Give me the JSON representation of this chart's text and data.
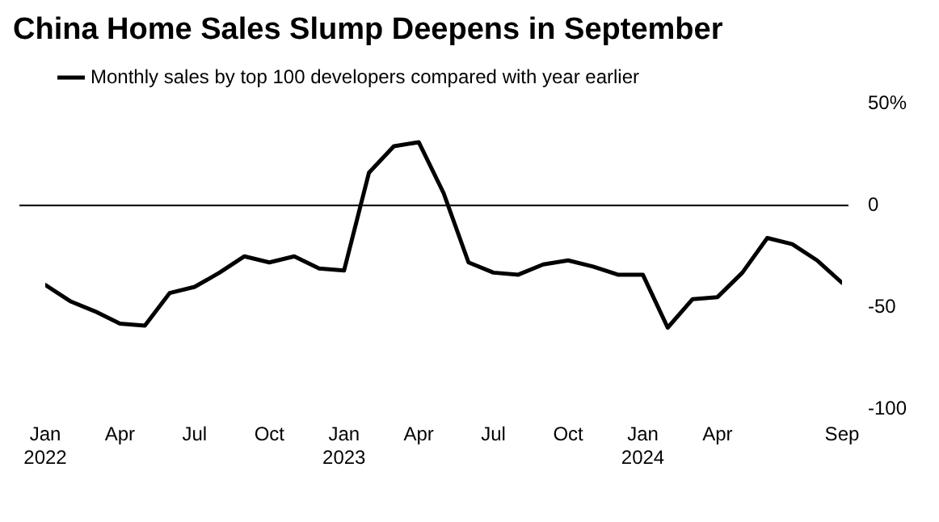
{
  "chart_data": {
    "type": "line",
    "title": "China Home Sales Slump Deepens in September",
    "x": [
      "2022-01",
      "2022-02",
      "2022-03",
      "2022-04",
      "2022-05",
      "2022-06",
      "2022-07",
      "2022-08",
      "2022-09",
      "2022-10",
      "2022-11",
      "2022-12",
      "2023-01",
      "2023-02",
      "2023-03",
      "2023-04",
      "2023-05",
      "2023-06",
      "2023-07",
      "2023-08",
      "2023-09",
      "2023-10",
      "2023-11",
      "2023-12",
      "2024-01",
      "2024-02",
      "2024-03",
      "2024-04",
      "2024-05",
      "2024-06",
      "2024-07",
      "2024-08",
      "2024-09"
    ],
    "series": [
      {
        "name": "Monthly sales by top 100 developers compared with year earlier",
        "color": "#000000",
        "values": [
          -39,
          -47,
          -52,
          -58,
          -59,
          -43,
          -40,
          -33,
          -25,
          -28,
          -25,
          -31,
          -32,
          16,
          29,
          31,
          6,
          -28,
          -33,
          -34,
          -29,
          -27,
          -30,
          -34,
          -34,
          -60,
          -46,
          -45,
          -33,
          -16,
          -19,
          -27,
          -38
        ]
      }
    ],
    "xticks": [
      {
        "value": "2022-01",
        "label": "Jan 2022"
      },
      {
        "value": "2022-04",
        "label": "Apr"
      },
      {
        "value": "2022-07",
        "label": "Jul"
      },
      {
        "value": "2022-10",
        "label": "Oct"
      },
      {
        "value": "2023-01",
        "label": "Jan 2023"
      },
      {
        "value": "2023-04",
        "label": "Apr"
      },
      {
        "value": "2023-07",
        "label": "Jul"
      },
      {
        "value": "2023-10",
        "label": "Oct"
      },
      {
        "value": "2024-01",
        "label": "Jan 2024"
      },
      {
        "value": "2024-04",
        "label": "Apr"
      },
      {
        "value": "2024-09",
        "label": "Sep"
      }
    ],
    "xlim": [
      "2022-01",
      "2024-09"
    ],
    "ylim": [
      -100,
      50
    ],
    "yticks": [
      -100,
      -50,
      0,
      {
        "value": 50,
        "label": "50%"
      }
    ],
    "ref_lines": [
      {
        "axis": "y",
        "value": 0,
        "color": "#000000"
      }
    ],
    "grid": false,
    "legend": "top left",
    "marker": "none",
    "line_style": "solid"
  }
}
